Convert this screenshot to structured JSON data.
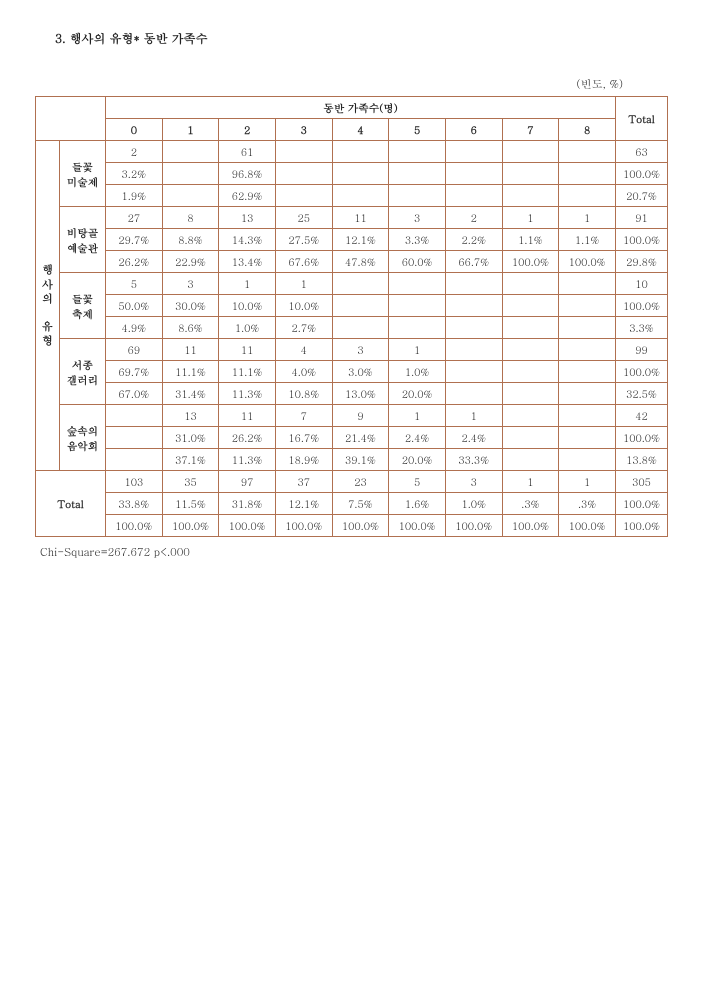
{
  "title": "3. 행사의 유형* 동반 가족수",
  "unit_label": "(빈도, %)",
  "table": {
    "col_group_label": "동반 가족수(명)",
    "col_headers": [
      "0",
      "1",
      "2",
      "3",
      "4",
      "5",
      "6",
      "7",
      "8"
    ],
    "total_label": "Total",
    "row_group_label": "행사의 유형",
    "categories": [
      {
        "name_line1": "들꽃",
        "name_line2": "미술제",
        "rows": [
          [
            "2",
            "",
            "61",
            "",
            "",
            "",
            "",
            "",
            "",
            "63"
          ],
          [
            "3.2%",
            "",
            "96.8%",
            "",
            "",
            "",
            "",
            "",
            "",
            "100.0%"
          ],
          [
            "1.9%",
            "",
            "62.9%",
            "",
            "",
            "",
            "",
            "",
            "",
            "20.7%"
          ]
        ]
      },
      {
        "name_line1": "비탕골",
        "name_line2": "예술관",
        "rows": [
          [
            "27",
            "8",
            "13",
            "25",
            "11",
            "3",
            "2",
            "1",
            "1",
            "91"
          ],
          [
            "29.7%",
            "8.8%",
            "14.3%",
            "27.5%",
            "12.1%",
            "3.3%",
            "2.2%",
            "1.1%",
            "1.1%",
            "100.0%"
          ],
          [
            "26.2%",
            "22.9%",
            "13.4%",
            "67.6%",
            "47.8%",
            "60.0%",
            "66.7%",
            "100.0%",
            "100.0%",
            "29.8%"
          ]
        ]
      },
      {
        "name_line1": "들꽃",
        "name_line2": "축제",
        "rows": [
          [
            "5",
            "3",
            "1",
            "1",
            "",
            "",
            "",
            "",
            "",
            "10"
          ],
          [
            "50.0%",
            "30.0%",
            "10.0%",
            "10.0%",
            "",
            "",
            "",
            "",
            "",
            "100.0%"
          ],
          [
            "4.9%",
            "8.6%",
            "1.0%",
            "2.7%",
            "",
            "",
            "",
            "",
            "",
            "3.3%"
          ]
        ]
      },
      {
        "name_line1": "서종",
        "name_line2": "갤러리",
        "rows": [
          [
            "69",
            "11",
            "11",
            "4",
            "3",
            "1",
            "",
            "",
            "",
            "99"
          ],
          [
            "69.7%",
            "11.1%",
            "11.1%",
            "4.0%",
            "3.0%",
            "1.0%",
            "",
            "",
            "",
            "100.0%"
          ],
          [
            "67.0%",
            "31.4%",
            "11.3%",
            "10.8%",
            "13.0%",
            "20.0%",
            "",
            "",
            "",
            "32.5%"
          ]
        ]
      },
      {
        "name_line1": "숲속의",
        "name_line2": "음악회",
        "rows": [
          [
            "",
            "13",
            "11",
            "7",
            "9",
            "1",
            "1",
            "",
            "",
            "42"
          ],
          [
            "",
            "31.0%",
            "26.2%",
            "16.7%",
            "21.4%",
            "2.4%",
            "2.4%",
            "",
            "",
            "100.0%"
          ],
          [
            "",
            "37.1%",
            "11.3%",
            "18.9%",
            "39.1%",
            "20.0%",
            "33.3%",
            "",
            "",
            "13.8%"
          ]
        ]
      }
    ],
    "total_rows": [
      [
        "103",
        "35",
        "97",
        "37",
        "23",
        "5",
        "3",
        "1",
        "1",
        "305"
      ],
      [
        "33.8%",
        "11.5%",
        "31.8%",
        "12.1%",
        "7.5%",
        "1.6%",
        "1.0%",
        ".3%",
        ".3%",
        "100.0%"
      ],
      [
        "100.0%",
        "100.0%",
        "100.0%",
        "100.0%",
        "100.0%",
        "100.0%",
        "100.0%",
        "100.0%",
        "100.0%",
        "100.0%"
      ]
    ]
  },
  "footnote": "Chi-Square=267.672  p<.000",
  "colors": {
    "border": "#b07050",
    "text": "#222222",
    "bg": "#ffffff"
  }
}
